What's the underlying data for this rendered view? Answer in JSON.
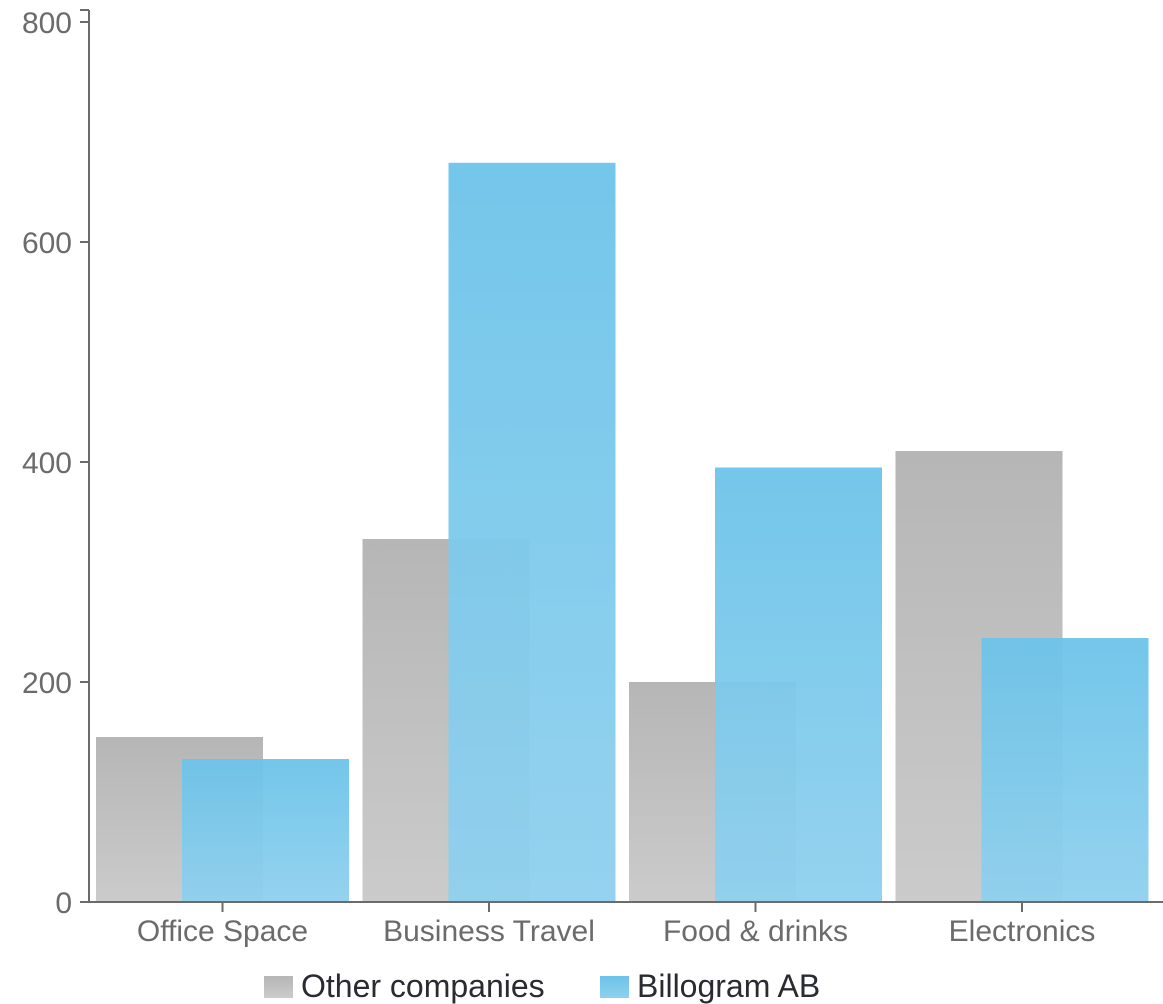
{
  "chart_data": {
    "type": "bar",
    "categories": [
      "Office Space",
      "Business Travel",
      "Food & drinks",
      "Electronics"
    ],
    "series": [
      {
        "name": "Other companies",
        "values": [
          150,
          330,
          200,
          410
        ],
        "color": "#bdbdbd"
      },
      {
        "name": "Billogram AB",
        "values": [
          130,
          672,
          395,
          240
        ],
        "color": "#6ec4ea"
      }
    ],
    "title": "",
    "xlabel": "",
    "ylabel": "",
    "ylim": [
      0,
      800
    ],
    "yticks": [
      0,
      200,
      400,
      600,
      800
    ],
    "grid": false,
    "legend_position": "bottom",
    "overlapping_bars": true
  }
}
